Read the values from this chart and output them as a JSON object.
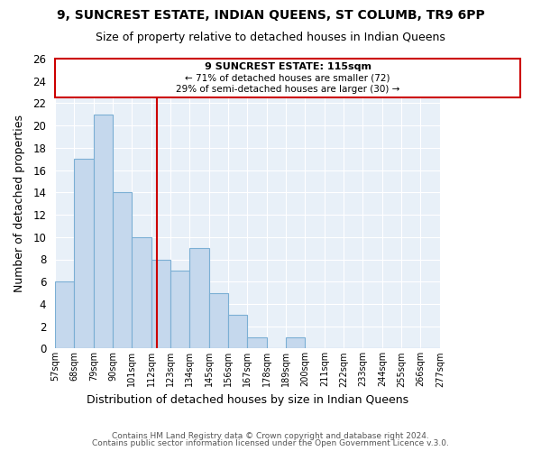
{
  "title": "9, SUNCREST ESTATE, INDIAN QUEENS, ST COLUMB, TR9 6PP",
  "subtitle": "Size of property relative to detached houses in Indian Queens",
  "xlabel": "Distribution of detached houses by size in Indian Queens",
  "ylabel": "Number of detached properties",
  "bins": [
    57,
    68,
    79,
    90,
    101,
    112,
    123,
    134,
    145,
    156,
    167,
    178,
    189,
    200,
    211,
    222,
    233,
    244,
    255,
    266,
    277
  ],
  "counts": [
    6,
    17,
    21,
    14,
    10,
    8,
    7,
    9,
    5,
    3,
    1,
    0,
    1,
    0,
    0,
    0,
    0,
    0,
    0,
    0
  ],
  "bar_color": "#c5d8ed",
  "bar_edge_color": "#7bafd4",
  "property_line_x": 115,
  "property_line_color": "#cc0000",
  "ylim": [
    0,
    26
  ],
  "yticks": [
    0,
    2,
    4,
    6,
    8,
    10,
    12,
    14,
    16,
    18,
    20,
    22,
    24,
    26
  ],
  "annotation_title": "9 SUNCREST ESTATE: 115sqm",
  "annotation_line1": "← 71% of detached houses are smaller (72)",
  "annotation_line2": "29% of semi-detached houses are larger (30) →",
  "footer1": "Contains HM Land Registry data © Crown copyright and database right 2024.",
  "footer2": "Contains public sector information licensed under the Open Government Licence v.3.0.",
  "background_color": "#ffffff",
  "plot_bg_color": "#e8f0f8",
  "grid_color": "#ffffff"
}
